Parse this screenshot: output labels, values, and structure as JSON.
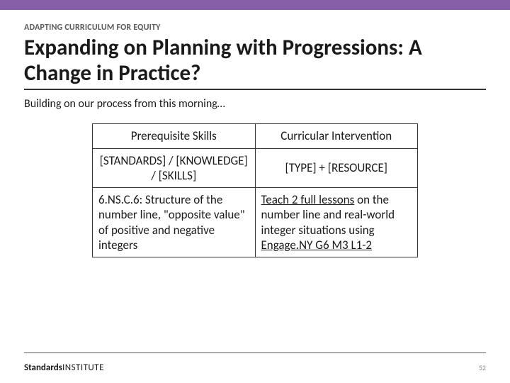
{
  "colors": {
    "accent": "#8560a8",
    "text": "#1a1a1a",
    "muted": "#5a5a5a",
    "border": "#333333",
    "page_muted": "#888888",
    "background": "#ffffff"
  },
  "eyebrow": "ADAPTING CURRICULUM FOR EQUITY",
  "title": "Expanding on Planning with Progressions: A Change in Practice?",
  "subtitle": "Building on our process from this morning…",
  "table": {
    "columns": [
      {
        "label": "Prerequisite Skills",
        "width_pct": 50,
        "align": "center"
      },
      {
        "label": "Curricular Intervention",
        "width_pct": 50,
        "align": "center"
      }
    ],
    "template_row": [
      "[STANDARDS] / [KNOWLEDGE] / [SKILLS]",
      "[TYPE] + [RESOURCE]"
    ],
    "example_row": {
      "prereq": {
        "standard_code": "6.NS.C.6",
        "description": "Structure of the number line, \"opposite value\" of positive and negative integers"
      },
      "intervention": {
        "action_underlined": "Teach 2 full lessons",
        "action_rest": " on the number line and real-world integer situations using ",
        "resource_underlined": "Engage.NY G6 M3 L1-2"
      }
    }
  },
  "footer": {
    "brand_bold": "Standards",
    "brand_light": "INSTITUTE",
    "page_number": "52"
  }
}
